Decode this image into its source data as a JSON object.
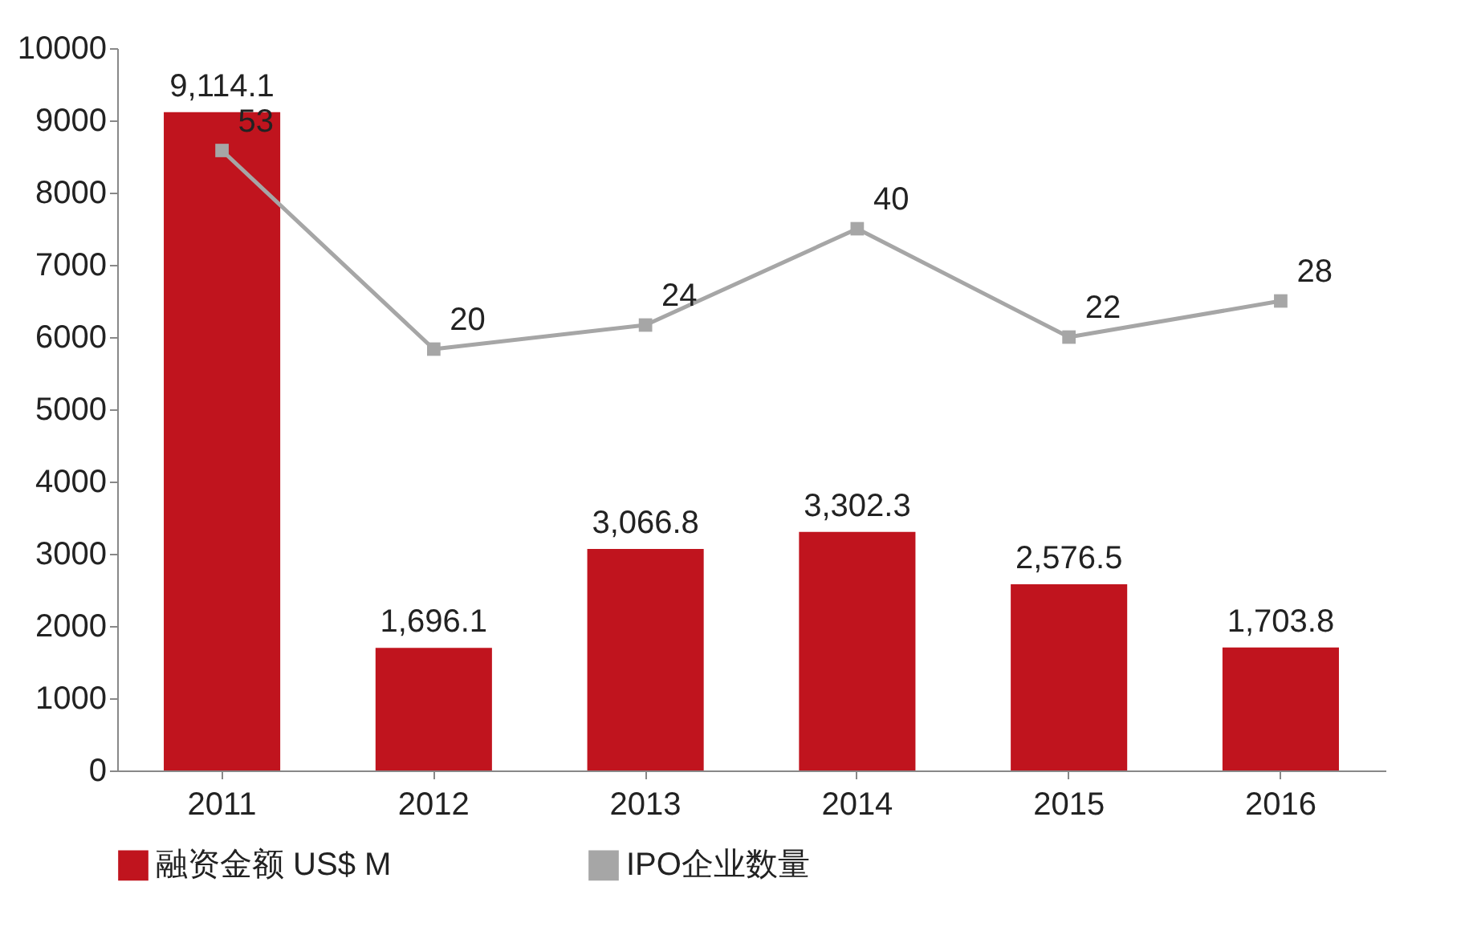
{
  "chart_data": {
    "type": "bar",
    "categories": [
      "2011",
      "2012",
      "2013",
      "2014",
      "2015",
      "2016"
    ],
    "series": [
      {
        "name": "融资金额 US$ M",
        "color": "#c0141e",
        "values": [
          9114.1,
          1696.1,
          3066.8,
          3302.3,
          2576.5,
          1703.8
        ],
        "value_labels": [
          "9,114.1",
          "1,696.1",
          "3,066.8",
          "3,302.3",
          "2,576.5",
          "1,703.8"
        ]
      },
      {
        "name": "IPO企业数量",
        "type": "line",
        "axis": "y2",
        "color": "#a6a6a6",
        "marker": "square",
        "values": [
          53,
          20,
          24,
          40,
          22,
          28
        ],
        "value_labels": [
          "53",
          "20",
          "24",
          "40",
          "22",
          "28"
        ]
      }
    ],
    "ylim": [
      0,
      10000
    ],
    "yticks": [
      0,
      1000,
      2000,
      3000,
      4000,
      5000,
      6000,
      7000,
      8000,
      9000,
      10000
    ],
    "y2lim": [
      -50,
      70
    ],
    "grid": false,
    "legend": "bottom"
  }
}
